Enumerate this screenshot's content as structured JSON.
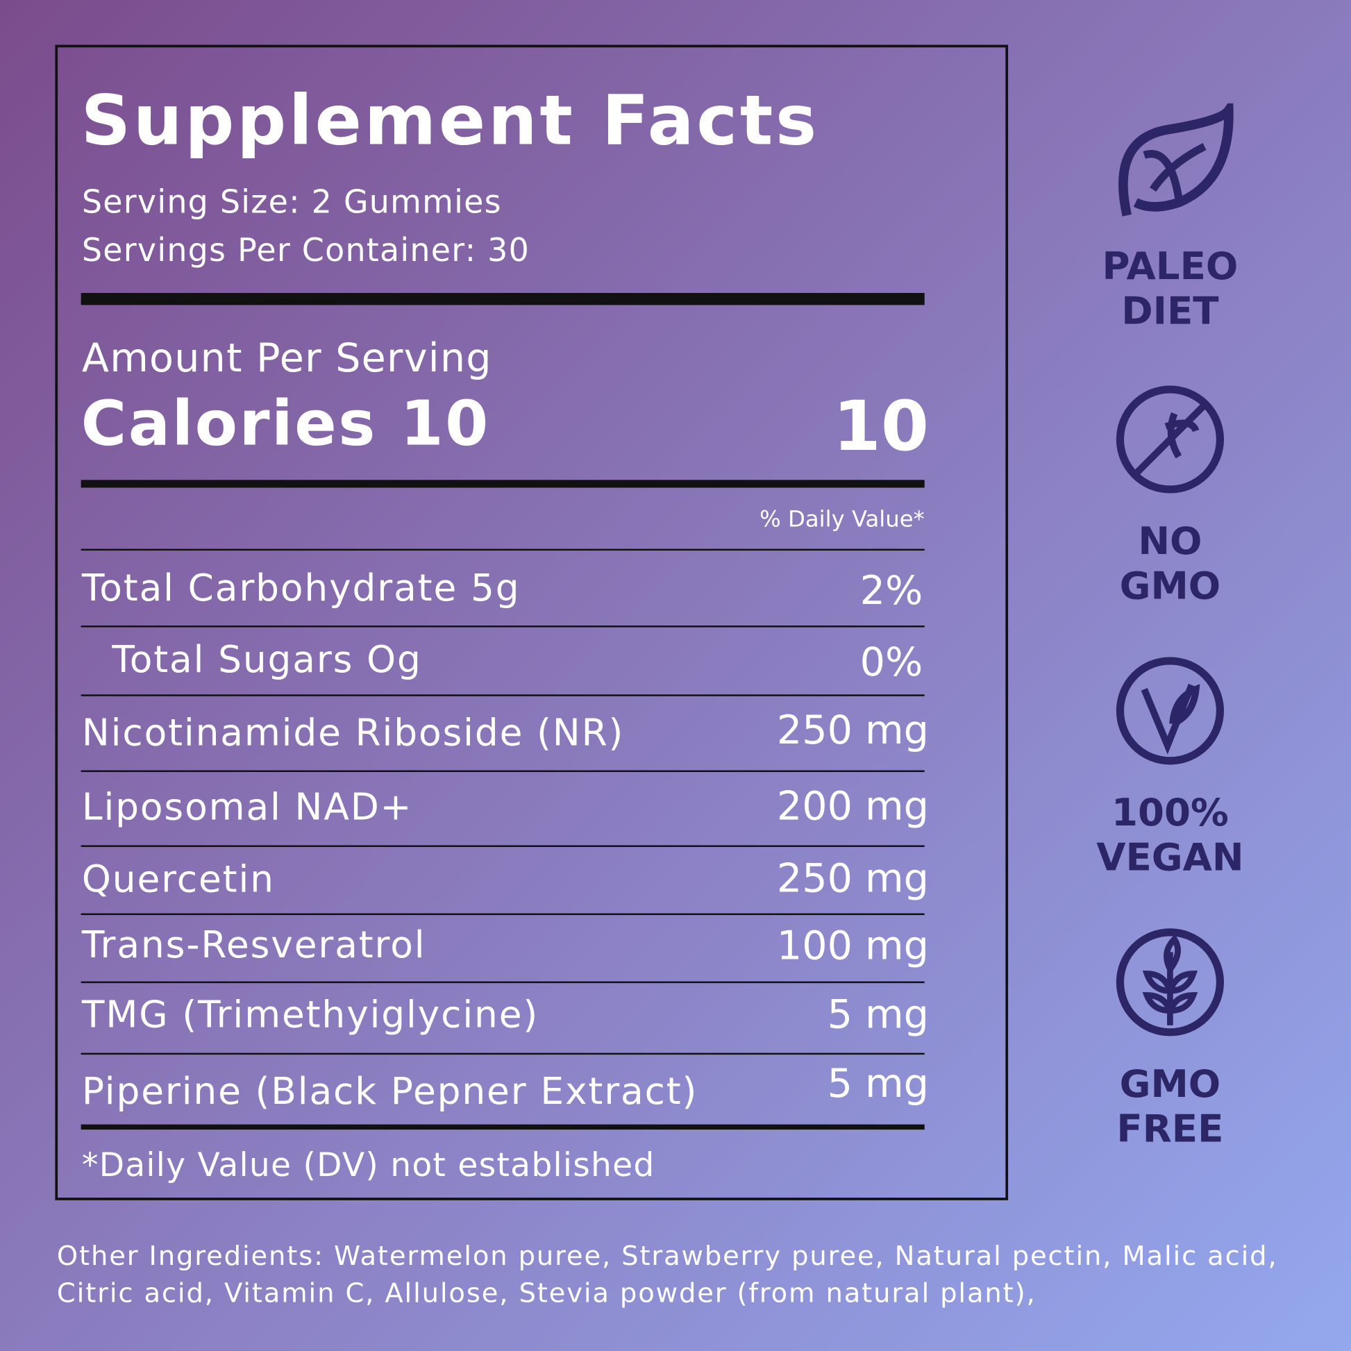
{
  "header": {
    "title": "Supplement Facts",
    "serving_size": "Serving Size: 2 Gummies",
    "servings_per_container": "Servings Per Container: 30"
  },
  "amount_per_serving": "Amount Per Serving",
  "calories": {
    "label": "Calories 10",
    "value": "10"
  },
  "daily_value_header": "% Daily Value*",
  "rows": [
    {
      "name": "Total Carbohydrate 5g",
      "amount": "2%"
    },
    {
      "name": "Total Sugars Og",
      "amount": "0%"
    },
    {
      "name": "Nicotinamide Riboside (NR)",
      "amount": "250 mg"
    },
    {
      "name": "Liposomal NAD+",
      "amount": "200 mg"
    },
    {
      "name": "Quercetin",
      "amount": "250 mg"
    },
    {
      "name": "Trans-Resveratrol",
      "amount": "100 mg"
    },
    {
      "name": "TMG (Trimethyiglycine)",
      "amount": "5 mg"
    },
    {
      "name": "Piperine (Black Pepner Extract)",
      "amount": "5 mg"
    }
  ],
  "footnote": "*Daily Value (DV) not established",
  "badges": [
    {
      "line1": "PALEO",
      "line2": "DIET"
    },
    {
      "line1": "NO",
      "line2": "GMO"
    },
    {
      "line1": "100%",
      "line2": "VEGAN"
    },
    {
      "line1": "GMO",
      "line2": "FREE"
    }
  ],
  "other_ingredients": "Other Ingredients: Watermelon puree, Strawberry puree, Natural pectin, Malic acid, Citric acid, Vitamin C, Allulose, Stevia powder (from natural plant),"
}
